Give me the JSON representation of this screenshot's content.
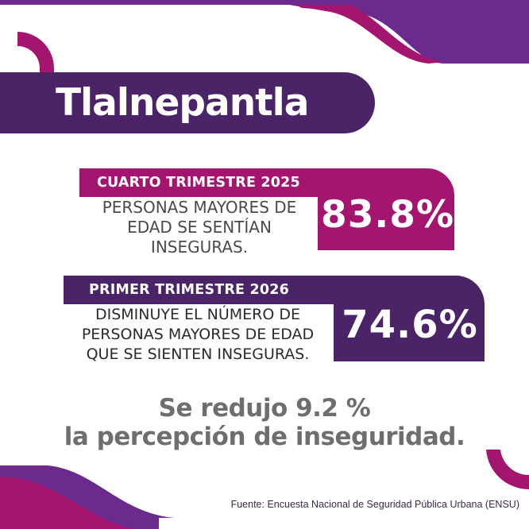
{
  "title": "Tlalnepantla",
  "cards": [
    {
      "period": "CUARTO TRIMESTRE 2025",
      "description": "PERSONAS MAYORES DE EDAD SE SENTÍAN INSEGURAS.",
      "value": "83.8%"
    },
    {
      "period": "PRIMER TRIMESTRE 2026",
      "description": "DISMINUYE EL NÚMERO DE PERSONAS MAYORES DE EDAD QUE SE SIENTEN INSEGURAS.",
      "value": "74.6%"
    }
  ],
  "conclusion": {
    "line1": "Se redujo 9.2 %",
    "line2": "la percepción de inseguridad."
  },
  "source": "Fuente: Encuesta Nacional de Seguridad Pública Urbana (ENSU)",
  "colors": {
    "magenta": "#a3156e",
    "purple": "#4a2466",
    "violet": "#6a2a8e",
    "text_gray": "#6e6e6e"
  }
}
